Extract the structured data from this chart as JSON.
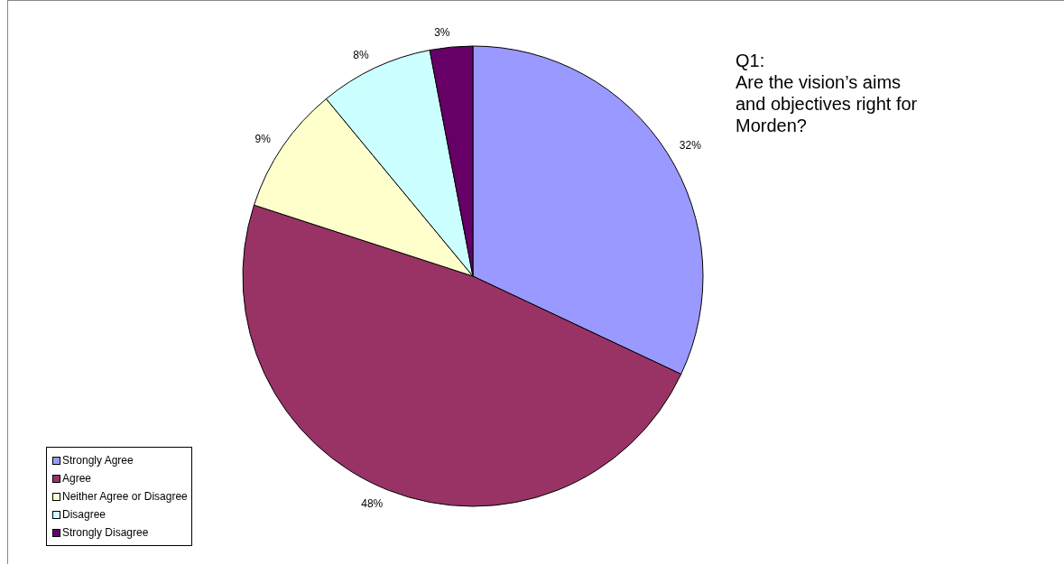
{
  "chart_data": {
    "type": "pie",
    "title": "Q1:",
    "subtitle": "Are the vision’s aims and objectives right for Morden?",
    "categories": [
      "Strongly Agree",
      "Agree",
      "Neither Agree or Disagree",
      "Disagree",
      "Strongly Disagree"
    ],
    "values": [
      32,
      48,
      9,
      8,
      3
    ],
    "colors": [
      "#9999ff",
      "#993366",
      "#ffffcc",
      "#ccffff",
      "#660066"
    ],
    "value_labels": [
      "32%",
      "48%",
      "9%",
      "8%",
      "3%"
    ],
    "legend": "bottom left"
  }
}
